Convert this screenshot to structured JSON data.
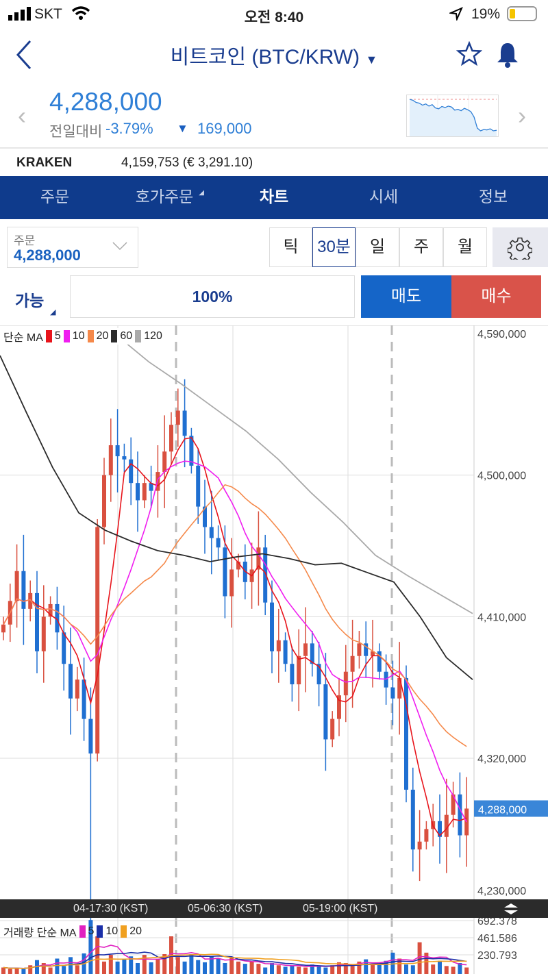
{
  "status_bar": {
    "carrier": "SKT",
    "time": "오전 8:40",
    "battery": "19%"
  },
  "header": {
    "title": "비트코인 (BTC/KRW)",
    "back_icon": "chevron-left-icon",
    "star_icon": "star-icon",
    "bell_icon": "bell-icon"
  },
  "price": {
    "current": "4,288,000",
    "change_label": "전일대비",
    "change_pct": "-3.79%",
    "change_amount": "169,000",
    "color": "#2f7fd6",
    "sparkline": [
      4457,
      4452,
      4440,
      4436,
      4425,
      4432,
      4420,
      4428,
      4410,
      4405,
      4418,
      4412,
      4420,
      4415,
      4398,
      4402,
      4395,
      4408,
      4400,
      4390,
      4360,
      4300,
      4285,
      4292,
      4290,
      4296,
      4285,
      4288
    ]
  },
  "exchange": {
    "name": "KRAKEN",
    "value": "4,159,753 (€ 3,291.10)"
  },
  "tabs": [
    {
      "label": "주문"
    },
    {
      "label": "호가주문"
    },
    {
      "label": "차트",
      "active": true
    },
    {
      "label": "시세"
    },
    {
      "label": "정보"
    }
  ],
  "order_select": {
    "label": "주문",
    "value": "4,288,000"
  },
  "periods": [
    {
      "label": "틱"
    },
    {
      "label": "30분",
      "active": true
    },
    {
      "label": "일"
    },
    {
      "label": "주"
    },
    {
      "label": "월"
    }
  ],
  "settings_icon": "gear-icon",
  "available": {
    "label": "가능",
    "percent": "100%",
    "sell": "매도",
    "buy": "매수",
    "sell_color": "#1565c8",
    "buy_color": "#d9534a"
  },
  "chart_data": {
    "type": "candlestick",
    "legend": {
      "label": "단순 MA",
      "items": [
        {
          "name": "5",
          "color": "#e8141b"
        },
        {
          "name": "10",
          "color": "#f01ef0"
        },
        {
          "name": "20",
          "color": "#f5894a"
        },
        {
          "name": "60",
          "color": "#2b2b2b"
        },
        {
          "name": "120",
          "color": "#aaaaaa"
        }
      ]
    },
    "y_ticks": [
      "4,590,000",
      "4,500,000",
      "4,410,000",
      "4,320,000",
      "4,230,000"
    ],
    "y_tick_values": [
      4590000,
      4500000,
      4410000,
      4320000,
      4230000
    ],
    "ylim": [
      4230000,
      4590000
    ],
    "current_price_label": "4,288,000",
    "current_price": 4288000,
    "x_ticks": [
      "04-17:30 (KST)",
      "05-06:30 (KST)",
      "05-19:00 (KST)"
    ],
    "up_color": "#d9503f",
    "down_color": "#1f6fd1",
    "closes": [
      4405,
      4420,
      4439,
      4415,
      4425,
      4388,
      4410,
      4418,
      4400,
      4380,
      4358,
      4370,
      4345,
      4323,
      4467,
      4500,
      4519,
      4512,
      4510,
      4495,
      4484,
      4495,
      4490,
      4502,
      4515,
      4532,
      4541,
      4525,
      4506,
      4480,
      4467,
      4460,
      4454,
      4423,
      4440,
      4445,
      4432,
      4440,
      4454,
      4419,
      4388,
      4395,
      4380,
      4367,
      4385,
      4393,
      4380,
      4367,
      4332,
      4345,
      4360,
      4375,
      4385,
      4393,
      4385,
      4388,
      4375,
      4365,
      4358,
      4371,
      4300,
      4262,
      4267,
      4275,
      4280,
      4270,
      4284,
      4297,
      4271,
      4288
    ],
    "closes_unit": "thousand KRW",
    "ma60": [
      4576,
      4540,
      4505,
      4476,
      4465,
      4458,
      4452,
      4449,
      4445,
      4448,
      4450,
      4447,
      4443,
      4444,
      4438,
      4432,
      4410,
      4384,
      4370
    ],
    "ma120": [
      4589,
      4572,
      4558,
      4543,
      4528,
      4510,
      4489,
      4470,
      4449,
      4436,
      4424,
      4412
    ],
    "volume": {
      "legend": {
        "label": "거래량 단순 MA",
        "items": [
          {
            "name": "5",
            "color": "#e020c0"
          },
          {
            "name": "10",
            "color": "#1a2fa8"
          },
          {
            "name": "20",
            "color": "#f0a020"
          }
        ]
      },
      "y_ticks": [
        "692.378",
        "461.586",
        "230.793"
      ],
      "y_tick_values": [
        692.378,
        461.586,
        230.793
      ],
      "values": [
        60,
        40,
        50,
        40,
        90,
        160,
        120,
        60,
        180,
        80,
        200,
        90,
        250,
        700,
        480,
        140,
        230,
        140,
        170,
        210,
        120,
        230,
        130,
        170,
        240,
        480,
        200,
        140,
        240,
        160,
        130,
        210,
        180,
        120,
        190,
        140,
        110,
        140,
        110,
        60,
        120,
        90,
        70,
        80,
        70,
        60,
        100,
        80,
        60,
        90,
        130,
        120,
        80,
        140,
        170,
        100,
        130,
        150,
        260,
        180,
        100,
        90,
        400,
        260,
        100,
        150,
        80,
        70,
        120,
        60
      ]
    }
  }
}
